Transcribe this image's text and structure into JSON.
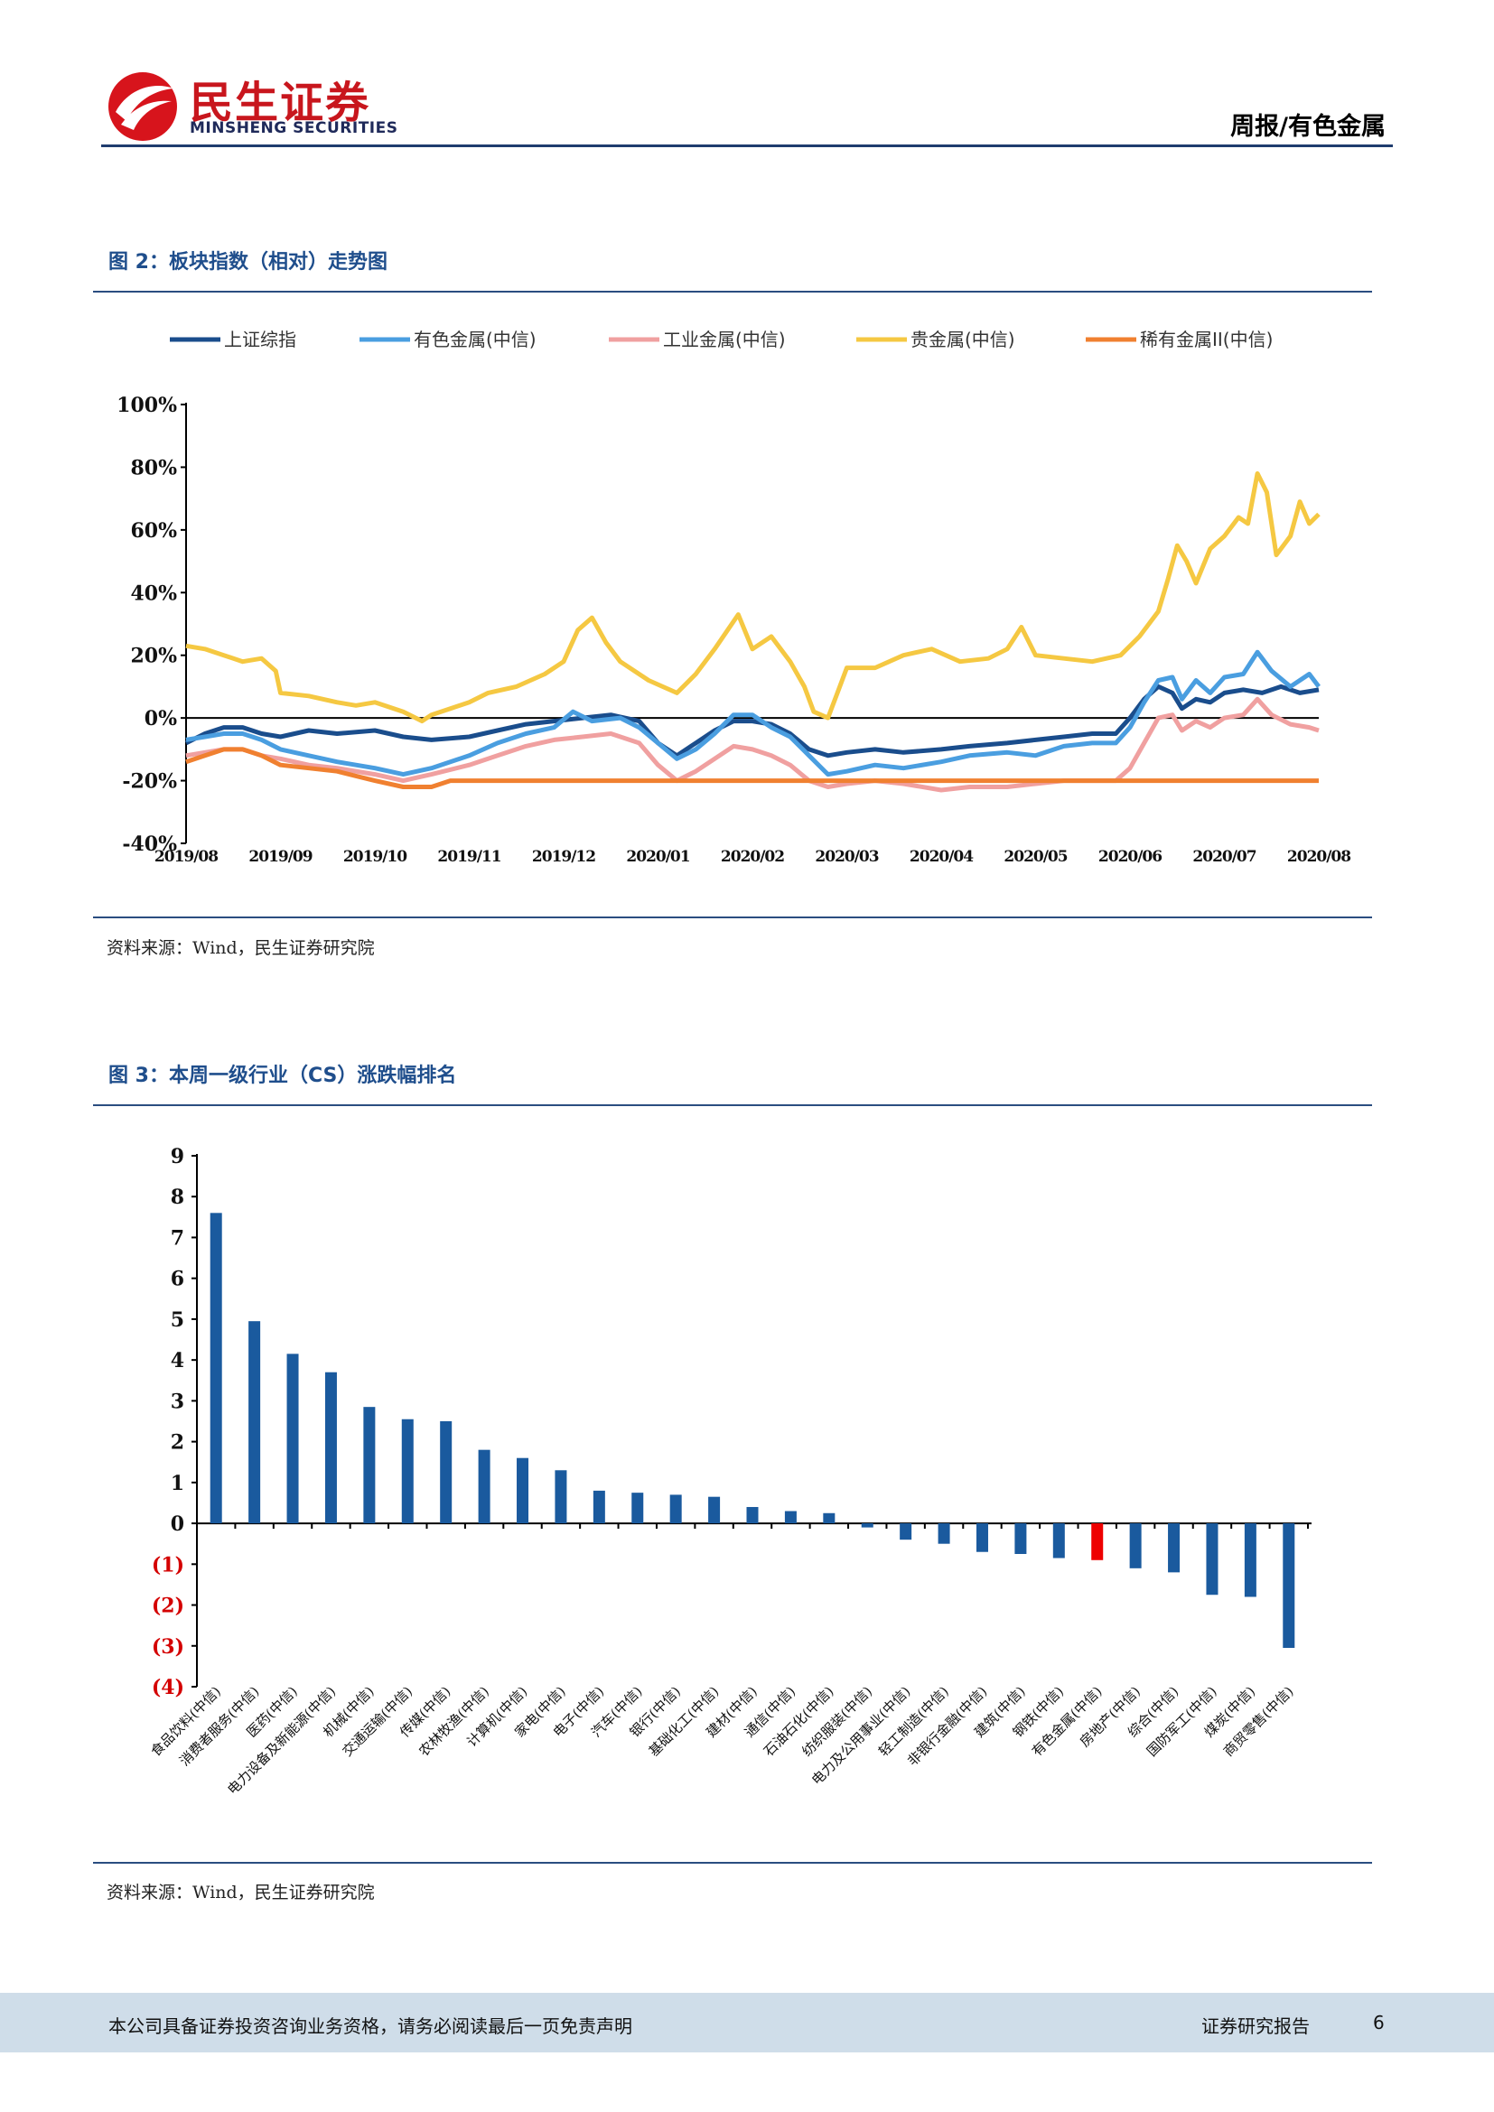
{
  "header": {
    "brand_cn": "民生证券",
    "brand_en": "MINSHENG SECURITIES",
    "report_type": "周报/有色金属"
  },
  "figure2": {
    "title": "图 2：板块指数（相对）走势图",
    "source": "资料来源：Wind，民生证券研究院"
  },
  "figure3": {
    "title": "图 3：本周一级行业（CS）涨跌幅排名",
    "source": "资料来源：Wind，民生证券研究院"
  },
  "chart_data": [
    {
      "type": "line",
      "y_unit": "%",
      "ylim": [
        -40,
        100
      ],
      "yticks": [
        "100%",
        "80%",
        "60%",
        "40%",
        "20%",
        "0%",
        "-20%",
        "-40%"
      ],
      "x_labels": [
        "2019/08",
        "2019/09",
        "2019/10",
        "2019/11",
        "2019/12",
        "2020/01",
        "2020/02",
        "2020/03",
        "2020/04",
        "2020/05",
        "2020/06",
        "2020/07",
        "2020/08"
      ],
      "legend_position": "top",
      "grid": false,
      "series": [
        {
          "name": "上证综指",
          "color": "#1a4d8c",
          "points": [
            [
              0,
              -8
            ],
            [
              0.2,
              -5
            ],
            [
              0.4,
              -3
            ],
            [
              0.6,
              -3
            ],
            [
              0.8,
              -5
            ],
            [
              1.0,
              -6
            ],
            [
              1.3,
              -4
            ],
            [
              1.6,
              -5
            ],
            [
              2.0,
              -4
            ],
            [
              2.3,
              -6
            ],
            [
              2.6,
              -7
            ],
            [
              3.0,
              -6
            ],
            [
              3.3,
              -4
            ],
            [
              3.6,
              -2
            ],
            [
              3.9,
              -1
            ],
            [
              4.2,
              0
            ],
            [
              4.5,
              1
            ],
            [
              4.8,
              -1
            ],
            [
              5.0,
              -8
            ],
            [
              5.2,
              -12
            ],
            [
              5.4,
              -8
            ],
            [
              5.6,
              -4
            ],
            [
              5.8,
              -1
            ],
            [
              6.0,
              -1
            ],
            [
              6.2,
              -2
            ],
            [
              6.4,
              -5
            ],
            [
              6.6,
              -10
            ],
            [
              6.8,
              -12
            ],
            [
              7.0,
              -11
            ],
            [
              7.3,
              -10
            ],
            [
              7.6,
              -11
            ],
            [
              8.0,
              -10
            ],
            [
              8.3,
              -9
            ],
            [
              8.7,
              -8
            ],
            [
              9.0,
              -7
            ],
            [
              9.3,
              -6
            ],
            [
              9.6,
              -5
            ],
            [
              9.85,
              -5
            ],
            [
              10.0,
              0
            ],
            [
              10.15,
              6
            ],
            [
              10.3,
              10
            ],
            [
              10.45,
              8
            ],
            [
              10.55,
              3
            ],
            [
              10.7,
              6
            ],
            [
              10.85,
              5
            ],
            [
              11.0,
              8
            ],
            [
              11.2,
              9
            ],
            [
              11.4,
              8
            ],
            [
              11.6,
              10
            ],
            [
              11.8,
              8
            ],
            [
              12.0,
              9
            ]
          ]
        },
        {
          "name": "有色金属(中信)",
          "color": "#4a9ee0",
          "points": [
            [
              0,
              -7
            ],
            [
              0.2,
              -6
            ],
            [
              0.4,
              -5
            ],
            [
              0.6,
              -5
            ],
            [
              0.8,
              -7
            ],
            [
              1.0,
              -10
            ],
            [
              1.3,
              -12
            ],
            [
              1.6,
              -14
            ],
            [
              2.0,
              -16
            ],
            [
              2.3,
              -18
            ],
            [
              2.6,
              -16
            ],
            [
              3.0,
              -12
            ],
            [
              3.3,
              -8
            ],
            [
              3.6,
              -5
            ],
            [
              3.9,
              -3
            ],
            [
              4.1,
              2
            ],
            [
              4.3,
              -1
            ],
            [
              4.6,
              0
            ],
            [
              4.8,
              -3
            ],
            [
              5.0,
              -8
            ],
            [
              5.2,
              -13
            ],
            [
              5.4,
              -10
            ],
            [
              5.6,
              -5
            ],
            [
              5.8,
              1
            ],
            [
              6.0,
              1
            ],
            [
              6.2,
              -3
            ],
            [
              6.4,
              -6
            ],
            [
              6.6,
              -12
            ],
            [
              6.8,
              -18
            ],
            [
              7.0,
              -17
            ],
            [
              7.3,
              -15
            ],
            [
              7.6,
              -16
            ],
            [
              8.0,
              -14
            ],
            [
              8.3,
              -12
            ],
            [
              8.7,
              -11
            ],
            [
              9.0,
              -12
            ],
            [
              9.3,
              -9
            ],
            [
              9.6,
              -8
            ],
            [
              9.85,
              -8
            ],
            [
              10.0,
              -3
            ],
            [
              10.15,
              5
            ],
            [
              10.3,
              12
            ],
            [
              10.45,
              13
            ],
            [
              10.55,
              6
            ],
            [
              10.7,
              12
            ],
            [
              10.85,
              8
            ],
            [
              11.0,
              13
            ],
            [
              11.2,
              14
            ],
            [
              11.35,
              21
            ],
            [
              11.5,
              15
            ],
            [
              11.7,
              10
            ],
            [
              11.9,
              14
            ],
            [
              12.0,
              10
            ]
          ]
        },
        {
          "name": "工业金属(中信)",
          "color": "#f0a0a0",
          "points": [
            [
              0,
              -12
            ],
            [
              0.2,
              -11
            ],
            [
              0.4,
              -10
            ],
            [
              0.6,
              -10
            ],
            [
              0.8,
              -12
            ],
            [
              1.0,
              -13
            ],
            [
              1.3,
              -15
            ],
            [
              1.6,
              -16
            ],
            [
              2.0,
              -18
            ],
            [
              2.3,
              -20
            ],
            [
              2.6,
              -18
            ],
            [
              3.0,
              -15
            ],
            [
              3.3,
              -12
            ],
            [
              3.6,
              -9
            ],
            [
              3.9,
              -7
            ],
            [
              4.2,
              -6
            ],
            [
              4.5,
              -5
            ],
            [
              4.8,
              -8
            ],
            [
              5.0,
              -15
            ],
            [
              5.2,
              -20
            ],
            [
              5.4,
              -17
            ],
            [
              5.6,
              -13
            ],
            [
              5.8,
              -9
            ],
            [
              6.0,
              -10
            ],
            [
              6.2,
              -12
            ],
            [
              6.4,
              -15
            ],
            [
              6.6,
              -20
            ],
            [
              6.8,
              -22
            ],
            [
              7.0,
              -21
            ],
            [
              7.3,
              -20
            ],
            [
              7.6,
              -21
            ],
            [
              8.0,
              -23
            ],
            [
              8.3,
              -22
            ],
            [
              8.7,
              -22
            ],
            [
              9.0,
              -21
            ],
            [
              9.3,
              -20
            ],
            [
              9.6,
              -20
            ],
            [
              9.85,
              -20
            ],
            [
              10.0,
              -16
            ],
            [
              10.15,
              -8
            ],
            [
              10.3,
              0
            ],
            [
              10.45,
              1
            ],
            [
              10.55,
              -4
            ],
            [
              10.7,
              -1
            ],
            [
              10.85,
              -3
            ],
            [
              11.0,
              0
            ],
            [
              11.2,
              1
            ],
            [
              11.35,
              6
            ],
            [
              11.5,
              1
            ],
            [
              11.7,
              -2
            ],
            [
              11.9,
              -3
            ],
            [
              12.0,
              -4
            ]
          ]
        },
        {
          "name": "贵金属(中信)",
          "color": "#f5c842",
          "points": [
            [
              0,
              23
            ],
            [
              0.2,
              22
            ],
            [
              0.4,
              20
            ],
            [
              0.6,
              18
            ],
            [
              0.8,
              19
            ],
            [
              0.95,
              15
            ],
            [
              1.0,
              8
            ],
            [
              1.3,
              7
            ],
            [
              1.6,
              5
            ],
            [
              1.8,
              4
            ],
            [
              2.0,
              5
            ],
            [
              2.3,
              2
            ],
            [
              2.5,
              -1
            ],
            [
              2.6,
              1
            ],
            [
              2.8,
              3
            ],
            [
              3.0,
              5
            ],
            [
              3.2,
              8
            ],
            [
              3.5,
              10
            ],
            [
              3.8,
              14
            ],
            [
              4.0,
              18
            ],
            [
              4.15,
              28
            ],
            [
              4.3,
              32
            ],
            [
              4.45,
              24
            ],
            [
              4.6,
              18
            ],
            [
              4.9,
              12
            ],
            [
              5.2,
              8
            ],
            [
              5.4,
              14
            ],
            [
              5.6,
              22
            ],
            [
              5.85,
              33
            ],
            [
              6.0,
              22
            ],
            [
              6.2,
              26
            ],
            [
              6.4,
              18
            ],
            [
              6.55,
              10
            ],
            [
              6.65,
              2
            ],
            [
              6.8,
              0
            ],
            [
              6.9,
              8
            ],
            [
              7.0,
              16
            ],
            [
              7.3,
              16
            ],
            [
              7.6,
              20
            ],
            [
              7.9,
              22
            ],
            [
              8.2,
              18
            ],
            [
              8.5,
              19
            ],
            [
              8.7,
              22
            ],
            [
              8.85,
              29
            ],
            [
              9.0,
              20
            ],
            [
              9.3,
              19
            ],
            [
              9.6,
              18
            ],
            [
              9.9,
              20
            ],
            [
              10.1,
              26
            ],
            [
              10.3,
              34
            ],
            [
              10.4,
              44
            ],
            [
              10.5,
              55
            ],
            [
              10.6,
              50
            ],
            [
              10.7,
              43
            ],
            [
              10.85,
              54
            ],
            [
              11.0,
              58
            ],
            [
              11.15,
              64
            ],
            [
              11.25,
              62
            ],
            [
              11.35,
              78
            ],
            [
              11.45,
              72
            ],
            [
              11.55,
              52
            ],
            [
              11.7,
              58
            ],
            [
              11.8,
              69
            ],
            [
              11.9,
              62
            ],
            [
              12.0,
              65
            ]
          ]
        },
        {
          "name": "稀有金属II(中信)",
          "color": "#f08030",
          "points": [
            [
              0,
              -14
            ],
            [
              0.2,
              -12
            ],
            [
              0.4,
              -10
            ],
            [
              0.6,
              -10
            ],
            [
              0.8,
              -12
            ],
            [
              1.0,
              -15
            ],
            [
              1.3,
              -16
            ],
            [
              1.6,
              -17
            ],
            [
              2.0,
              -20
            ],
            [
              2.3,
              -22
            ],
            [
              2.6,
              -22
            ],
            [
              2.8,
              -20
            ],
            [
              3.0,
              -20
            ],
            [
              12.0,
              -20
            ]
          ]
        }
      ]
    },
    {
      "type": "bar",
      "ylim": [
        -4,
        9
      ],
      "yticks": [
        "9",
        "8",
        "7",
        "6",
        "5",
        "4",
        "3",
        "2",
        "1",
        "0",
        "(1)",
        "(2)",
        "(3)",
        "(4)"
      ],
      "negative_tick_color": "#d40000",
      "bar_color": "#1a5a9e",
      "highlight_color": "#ee0000",
      "highlight_category": "有色金属(中信)",
      "categories": [
        "食品饮料(中信)",
        "消费者服务(中信)",
        "医药(中信)",
        "电力设备及新能源(中信)",
        "机械(中信)",
        "交通运输(中信)",
        "传媒(中信)",
        "农林牧渔(中信)",
        "计算机(中信)",
        "家电(中信)",
        "电子(中信)",
        "汽车(中信)",
        "银行(中信)",
        "基础化工(中信)",
        "建材(中信)",
        "通信(中信)",
        "石油石化(中信)",
        "纺织服装(中信)",
        "电力及公用事业(中信)",
        "轻工制造(中信)",
        "非银行金融(中信)",
        "建筑(中信)",
        "钢铁(中信)",
        "有色金属(中信)",
        "房地产(中信)",
        "综合(中信)",
        "国防军工(中信)",
        "煤炭(中信)",
        "商贸零售(中信)"
      ],
      "values": [
        7.6,
        4.95,
        4.15,
        3.7,
        2.85,
        2.55,
        2.5,
        1.8,
        1.6,
        1.3,
        0.8,
        0.75,
        0.7,
        0.65,
        0.4,
        0.3,
        0.25,
        -0.1,
        -0.4,
        -0.5,
        -0.7,
        -0.75,
        -0.85,
        -0.9,
        -1.1,
        -1.2,
        -1.75,
        -1.8,
        -3.05
      ]
    }
  ],
  "footer": {
    "disclaimer": "本公司具备证券投资咨询业务资格，请务必阅读最后一页免责声明",
    "report_label": "证券研究报告",
    "page_number": "6"
  }
}
